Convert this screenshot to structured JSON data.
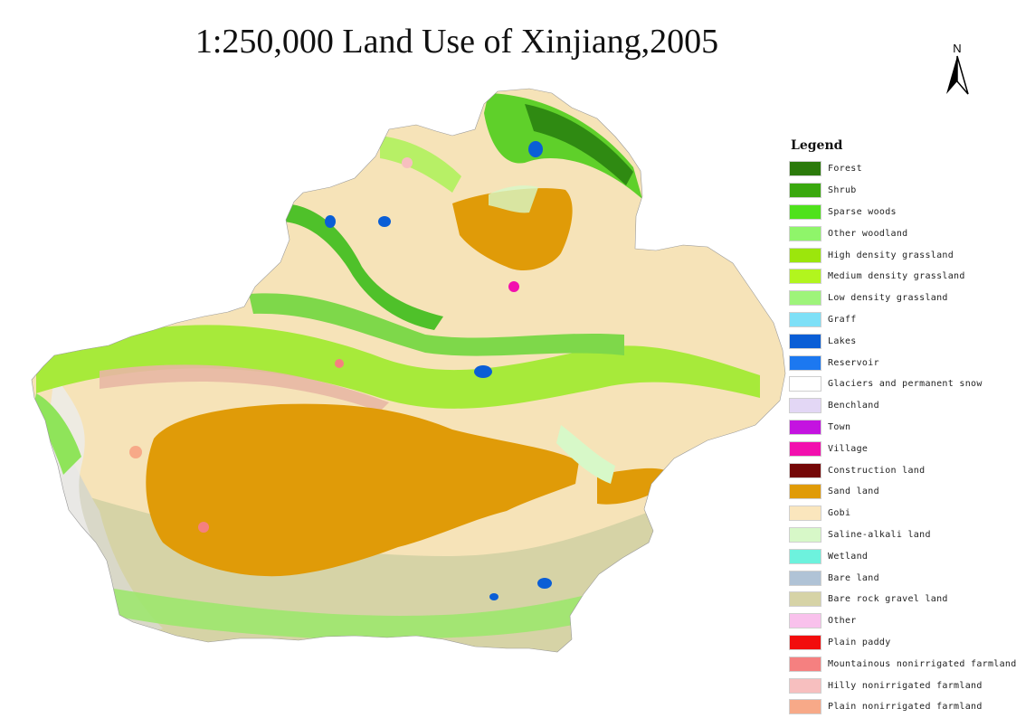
{
  "title": "1:250,000 Land Use of Xinjiang,2005",
  "north_arrow": {
    "label": "N"
  },
  "legend": {
    "title": "Legend",
    "items": [
      {
        "label": "Forest",
        "color": "#2b7a0b"
      },
      {
        "label": "Shrub",
        "color": "#3aa80e"
      },
      {
        "label": "Sparse woods",
        "color": "#4fe21c"
      },
      {
        "label": "Other woodland",
        "color": "#8ff56a"
      },
      {
        "label": "High density grassland",
        "color": "#9ce60c"
      },
      {
        "label": "Medium density grassland",
        "color": "#b2f51e"
      },
      {
        "label": "Low density grassland",
        "color": "#9ef47a"
      },
      {
        "label": "Graff",
        "color": "#7ee0f7"
      },
      {
        "label": "Lakes",
        "color": "#0a5ed6"
      },
      {
        "label": "Reservoir",
        "color": "#1c78f0"
      },
      {
        "label": "Glaciers and permanent snow",
        "color": "#ffffff"
      },
      {
        "label": "Benchland",
        "color": "#e3d7f5"
      },
      {
        "label": "Town",
        "color": "#c413e0"
      },
      {
        "label": "Village",
        "color": "#f20fae"
      },
      {
        "label": "Construction land",
        "color": "#740707"
      },
      {
        "label": "Sand land",
        "color": "#e09b08"
      },
      {
        "label": "Gobi",
        "color": "#fae6bd"
      },
      {
        "label": "Saline-alkali land",
        "color": "#d7f8c8"
      },
      {
        "label": "Wetland",
        "color": "#6df2dd"
      },
      {
        "label": "Bare land",
        "color": "#b0c3d6"
      },
      {
        "label": "Bare rock gravel land",
        "color": "#d6d3a6"
      },
      {
        "label": "Other",
        "color": "#f9c1ec"
      },
      {
        "label": "Plain paddy",
        "color": "#f20d0d"
      },
      {
        "label": "Mountainous nonirrigated farmland",
        "color": "#f58080"
      },
      {
        "label": "Hilly nonirrigated farmland",
        "color": "#f7bfbf"
      },
      {
        "label": "Plain nonirrigated farmland",
        "color": "#f7a988"
      }
    ]
  }
}
